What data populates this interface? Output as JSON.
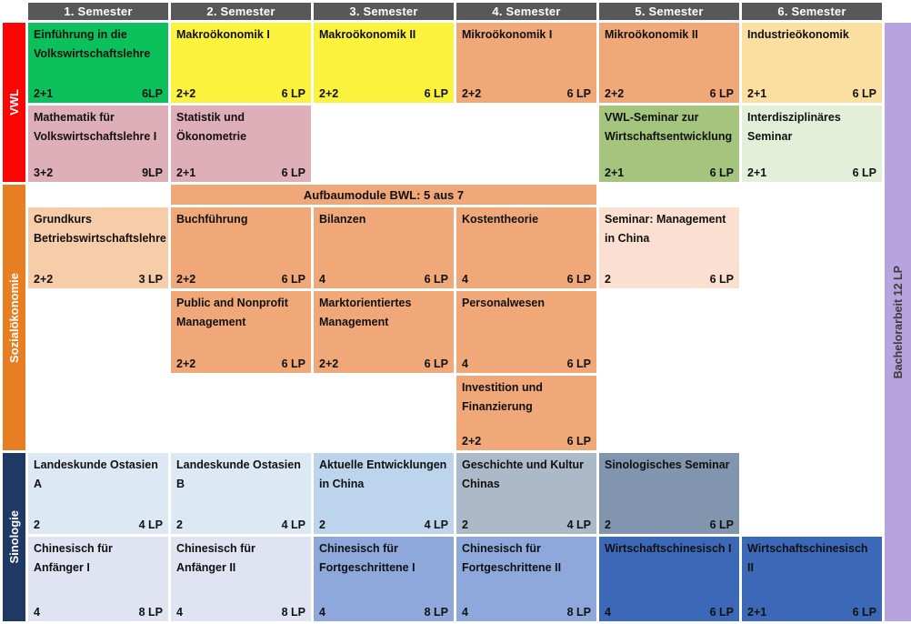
{
  "header": {
    "bg": "#58585A",
    "semesters": [
      "1. Semester",
      "2. Semester",
      "3. Semester",
      "4. Semester",
      "5. Semester",
      "6. Semester"
    ]
  },
  "sidebar": {
    "sections": [
      {
        "label": "VWL",
        "color": "#FB0505"
      },
      {
        "label": "Sozialökonomie",
        "color": "#E87E22"
      },
      {
        "label": "Sinologie",
        "color": "#1F3864"
      }
    ]
  },
  "bachelor_bar": {
    "label": "Bachelorarbeit 12 LP",
    "color": "#B7A3DD"
  },
  "band": {
    "label": "Aufbaumodule BWL: 5 aus 7",
    "color": "#F1A878",
    "semester_start": 2,
    "semester_end": 4
  },
  "colors": {
    "green": "#0CC15C",
    "yellow": "#FAF23C",
    "salmon": "#F1A878",
    "cream": "#FBDFA0",
    "pink": "#DFAFB9",
    "seminar_green": "#A5C47E",
    "pale_green": "#E3EFD8",
    "light_orange": "#F7CDA9",
    "pale_orange": "#FBE0D1",
    "pale_blue": "#DCE8F4",
    "light_blue": "#BCD5EC",
    "gray_blue": "#ABB9C9",
    "steel_blue": "#8295AE",
    "lavender": "#DFE3F2",
    "mid_blue": "#8FA8DB",
    "strong_blue": "#3C68B8"
  },
  "modules": [
    {
      "title": "Einführung in die Volkswirtschaftslehre",
      "hours": "2+1",
      "lp": "6LP",
      "semester": 1,
      "row": "vwl1",
      "color": "green"
    },
    {
      "title": "Makroökonomik I",
      "hours": "2+2",
      "lp": "6 LP",
      "semester": 2,
      "row": "vwl1",
      "color": "yellow"
    },
    {
      "title": "Makroökonomik II",
      "hours": "2+2",
      "lp": "6 LP",
      "semester": 3,
      "row": "vwl1",
      "color": "yellow"
    },
    {
      "title": "Mikroökonomik I",
      "hours": "2+2",
      "lp": "6 LP",
      "semester": 4,
      "row": "vwl1",
      "color": "salmon"
    },
    {
      "title": "Mikroökonomik II",
      "hours": "2+2",
      "lp": "6 LP",
      "semester": 5,
      "row": "vwl1",
      "color": "salmon"
    },
    {
      "title": "Industrieökonomik",
      "hours": "2+1",
      "lp": "6 LP",
      "semester": 6,
      "row": "vwl1",
      "color": "cream"
    },
    {
      "title": "Mathematik für Volkswirtschaftslehre I",
      "hours": "3+2",
      "lp": "9LP",
      "semester": 1,
      "row": "vwl2",
      "color": "pink"
    },
    {
      "title": "Statistik und Ökonometrie",
      "hours": "2+1",
      "lp": "6 LP",
      "semester": 2,
      "row": "vwl2",
      "color": "pink"
    },
    {
      "title": "VWL-Seminar zur Wirtschaftsentwicklung",
      "hours": "2+1",
      "lp": "6 LP",
      "semester": 5,
      "row": "vwl2",
      "color": "seminar_green"
    },
    {
      "title": "Interdisziplinäres Seminar",
      "hours": "2+1",
      "lp": "6 LP",
      "semester": 6,
      "row": "vwl2",
      "color": "pale_green"
    },
    {
      "title": "Grundkurs Betriebswirtschaftslehre",
      "hours": "2+2",
      "lp": "3 LP",
      "semester": 1,
      "row": "bwl1",
      "color": "light_orange"
    },
    {
      "title": "Buchführung",
      "hours": "2+2",
      "lp": "6 LP",
      "semester": 2,
      "row": "bwl1",
      "color": "salmon"
    },
    {
      "title": "Bilanzen",
      "hours": "4",
      "lp": "6 LP",
      "semester": 3,
      "row": "bwl1",
      "color": "salmon"
    },
    {
      "title": "Kostentheorie",
      "hours": "4",
      "lp": "6 LP",
      "semester": 4,
      "row": "bwl1",
      "color": "salmon"
    },
    {
      "title": "Seminar: Management in China",
      "hours": "2",
      "lp": "6 LP",
      "semester": 5,
      "row": "bwl1",
      "color": "pale_orange"
    },
    {
      "title": "Public and Nonprofit Management",
      "hours": "2+2",
      "lp": "6 LP",
      "semester": 2,
      "row": "bwl2",
      "color": "salmon"
    },
    {
      "title": "Marktorientiertes Management",
      "hours": "2+2",
      "lp": "6 LP",
      "semester": 3,
      "row": "bwl2",
      "color": "salmon"
    },
    {
      "title": "Personalwesen",
      "hours": "4",
      "lp": "6 LP",
      "semester": 4,
      "row": "bwl2",
      "color": "salmon"
    },
    {
      "title": "Investition und Finanzierung",
      "hours": "2+2",
      "lp": "6 LP",
      "semester": 4,
      "row": "bwl3",
      "color": "salmon"
    },
    {
      "title": "Landeskunde Ostasien A",
      "hours": "2",
      "lp": "4 LP",
      "semester": 1,
      "row": "sino1",
      "color": "pale_blue"
    },
    {
      "title": "Landeskunde Ostasien B",
      "hours": "2",
      "lp": "4 LP",
      "semester": 2,
      "row": "sino1",
      "color": "pale_blue"
    },
    {
      "title": "Aktuelle Entwicklungen in China",
      "hours": "2",
      "lp": "4 LP",
      "semester": 3,
      "row": "sino1",
      "color": "light_blue"
    },
    {
      "title": "Geschichte und Kultur Chinas",
      "hours": "2",
      "lp": "4 LP",
      "semester": 4,
      "row": "sino1",
      "color": "gray_blue"
    },
    {
      "title": "Sinologisches Seminar",
      "hours": "2",
      "lp": "6 LP",
      "semester": 5,
      "row": "sino1",
      "color": "steel_blue"
    },
    {
      "title": "Chinesisch für Anfänger I",
      "hours": "4",
      "lp": "8 LP",
      "semester": 1,
      "row": "sino2",
      "color": "lavender"
    },
    {
      "title": "Chinesisch für Anfänger II",
      "hours": "4",
      "lp": "8 LP",
      "semester": 2,
      "row": "sino2",
      "color": "lavender"
    },
    {
      "title": "Chinesisch für Fortgeschrittene I",
      "hours": "4",
      "lp": "8 LP",
      "semester": 3,
      "row": "sino2",
      "color": "mid_blue"
    },
    {
      "title": "Chinesisch für Fortgeschrittene II",
      "hours": "4",
      "lp": "8 LP",
      "semester": 4,
      "row": "sino2",
      "color": "mid_blue"
    },
    {
      "title": "Wirtschaftschinesisch I",
      "hours": "4",
      "lp": "6 LP",
      "semester": 5,
      "row": "sino2",
      "color": "strong_blue"
    },
    {
      "title": "Wirtschaftschinesisch II",
      "hours": "2+1",
      "lp": "6 LP",
      "semester": 6,
      "row": "sino2",
      "color": "strong_blue"
    }
  ]
}
